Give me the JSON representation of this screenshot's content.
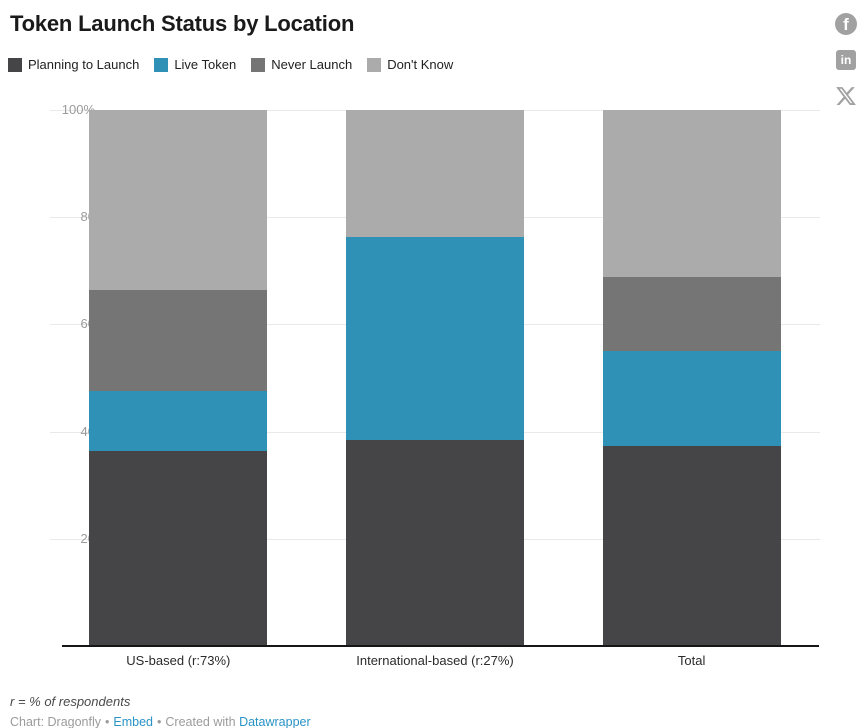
{
  "title": "Token Launch Status by Location",
  "social": {
    "facebook_glyph": "f",
    "linkedin_glyph": "in"
  },
  "legend": {
    "items": [
      {
        "label": "Planning to Launch",
        "color": "#454547"
      },
      {
        "label": "Live Token",
        "color": "#2e91b5"
      },
      {
        "label": "Never Launch",
        "color": "#757575"
      },
      {
        "label": "Don't Know",
        "color": "#ababab"
      }
    ]
  },
  "chart_data": {
    "type": "bar",
    "stacked": true,
    "title": "Token Launch Status by Location",
    "categories": [
      "US-based (r:73%)",
      "International-based (r:27%)",
      "Total"
    ],
    "series": [
      {
        "name": "Planning to Launch",
        "color": "#454547",
        "values": [
          36.4,
          38.4,
          37.3
        ]
      },
      {
        "name": "Live Token",
        "color": "#2e91b5",
        "values": [
          11.2,
          38.0,
          17.7
        ]
      },
      {
        "name": "Never Launch",
        "color": "#757575",
        "values": [
          18.9,
          0,
          13.9
        ]
      },
      {
        "name": "Don't Know",
        "color": "#ababab",
        "values": [
          33.5,
          23.6,
          31.1
        ]
      }
    ],
    "xlabel": "",
    "ylabel": "",
    "ylim": [
      0,
      100
    ],
    "yticks": [
      {
        "value": 100,
        "label": "100%"
      },
      {
        "value": 80,
        "label": "80"
      },
      {
        "value": 60,
        "label": "60"
      },
      {
        "value": 40,
        "label": "40"
      },
      {
        "value": 20,
        "label": "20"
      }
    ],
    "grid": true,
    "legend_position": "top",
    "unit": "%"
  },
  "footer": {
    "note": "r = % of respondents",
    "credit": {
      "prefix": "Chart: Dragonfly",
      "separator1": "•",
      "embed_label": "Embed",
      "separator2": "•",
      "created_with": "Created with",
      "datawrapper_label": "Datawrapper"
    }
  },
  "colors": {
    "grid": "#e9e9e9",
    "axis_line": "#161616",
    "ytick_text": "#9b9b9b",
    "xtick_text": "#2b2b2b",
    "link": "#2993c6",
    "social_icon": "#a1a1a1"
  }
}
